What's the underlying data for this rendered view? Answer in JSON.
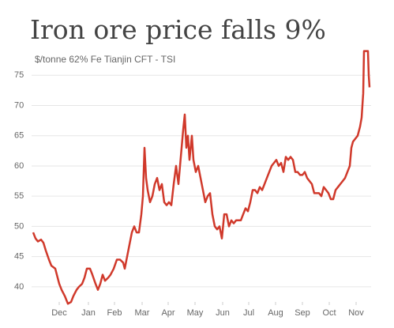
{
  "chart_data": {
    "type": "line",
    "title": "Iron ore price falls 9%",
    "subtitle": "$/tonne 62% Fe Tianjin CFT - TSI",
    "x": [
      0,
      3,
      6,
      10,
      13,
      16,
      20,
      23,
      28,
      31,
      33,
      36,
      40,
      44,
      48,
      51,
      55,
      58,
      62,
      65,
      68,
      72,
      75,
      79,
      82,
      85,
      88,
      91,
      95,
      98,
      102,
      106,
      110,
      114,
      116,
      119,
      122,
      125,
      128,
      131,
      134,
      137,
      139,
      141,
      143,
      145,
      148,
      151,
      154,
      157,
      160,
      163,
      166,
      169,
      172,
      175,
      178,
      181,
      184,
      186,
      188,
      190,
      192,
      194,
      196,
      198,
      201,
      203,
      206,
      209,
      212,
      215,
      218,
      221,
      224,
      227,
      230,
      233,
      236,
      239,
      242,
      245,
      248,
      251,
      254,
      257,
      260,
      263,
      266,
      269,
      272,
      275,
      278,
      281,
      284,
      287,
      290,
      293,
      296,
      299,
      302,
      305,
      308,
      311,
      314,
      317,
      320,
      323,
      326,
      329,
      332,
      335,
      338,
      341,
      344,
      347,
      350,
      353,
      356,
      359,
      362,
      365,
      368,
      371,
      374,
      377,
      380,
      383,
      386,
      389,
      392,
      395,
      398,
      401,
      403,
      405,
      408,
      411,
      414,
      416,
      418,
      419,
      424,
      425,
      426
    ],
    "series": [
      {
        "name": "Iron ore",
        "color": "#d0392b",
        "values": [
          49,
          48,
          47.5,
          47.8,
          47.3,
          46,
          44.5,
          43.5,
          43,
          41.5,
          40.5,
          39.5,
          38.5,
          37.2,
          37.5,
          38.5,
          39.5,
          40,
          40.5,
          41.5,
          43,
          43,
          42,
          40.5,
          39.5,
          40.5,
          42,
          41,
          41.5,
          42,
          43,
          44.5,
          44.5,
          44,
          43,
          45,
          47,
          49,
          50,
          49,
          49,
          52,
          55,
          63,
          58,
          56,
          54,
          55,
          57,
          58,
          56,
          57,
          54,
          53.5,
          54,
          53.5,
          57,
          60,
          57,
          60,
          63,
          66,
          68.5,
          63,
          65,
          61,
          65,
          61,
          59,
          60,
          58,
          56,
          54,
          55,
          55.5,
          52,
          50,
          49.5,
          50,
          48,
          52,
          52,
          50,
          51,
          50.5,
          51,
          51,
          51,
          52,
          53,
          52.5,
          54,
          56,
          56,
          55.5,
          56.5,
          56,
          57,
          58,
          59,
          60,
          60.5,
          61,
          60,
          60.5,
          59,
          61.5,
          61,
          61.5,
          61,
          59,
          59,
          58.5,
          58.5,
          59,
          58,
          57.5,
          57,
          55.5,
          55.5,
          55.5,
          55,
          56.5,
          56,
          55.5,
          54.5,
          54.5,
          56,
          56.5,
          57,
          57.5,
          58,
          59,
          60,
          63,
          64,
          64.5,
          65,
          66.5,
          68,
          72,
          79,
          79,
          75,
          73
        ]
      }
    ],
    "xlim": [
      -2,
      428
    ],
    "xticks": [
      {
        "value": 33,
        "label": "Dec"
      },
      {
        "value": 70,
        "label": "Jan"
      },
      {
        "value": 103,
        "label": "Feb"
      },
      {
        "value": 138,
        "label": "Mar"
      },
      {
        "value": 171,
        "label": "Apr"
      },
      {
        "value": 205,
        "label": "May"
      },
      {
        "value": 240,
        "label": "Jun"
      },
      {
        "value": 273,
        "label": "Jul"
      },
      {
        "value": 307,
        "label": "Aug"
      },
      {
        "value": 341,
        "label": "Sep"
      },
      {
        "value": 375,
        "label": "Oct"
      },
      {
        "value": 409,
        "label": "Nov"
      }
    ],
    "ylim": [
      37.5,
      80
    ],
    "yticks": [
      40,
      45,
      50,
      55,
      60,
      65,
      70,
      75
    ],
    "grid": true
  }
}
